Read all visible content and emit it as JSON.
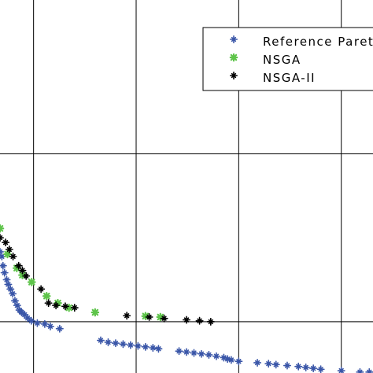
{
  "chart_data": {
    "type": "scatter",
    "xlim": [
      0,
      1.0
    ],
    "ylim": [
      0.32,
      1.12
    ],
    "x_gridlines": [
      0.09,
      0.365,
      0.64,
      0.915
    ],
    "y_gridlines": [
      0.43,
      0.79
    ],
    "grid": true,
    "legend_position": "top-right",
    "series": [
      {
        "name": "Reference Pareto",
        "color": "#3a56a8",
        "marker": "cross-star",
        "points": [
          [
            0.0,
            0.58
          ],
          [
            0.005,
            0.57
          ],
          [
            0.008,
            0.55
          ],
          [
            0.012,
            0.535
          ],
          [
            0.018,
            0.52
          ],
          [
            0.022,
            0.51
          ],
          [
            0.028,
            0.5
          ],
          [
            0.034,
            0.49
          ],
          [
            0.04,
            0.475
          ],
          [
            0.046,
            0.465
          ],
          [
            0.052,
            0.455
          ],
          [
            0.058,
            0.45
          ],
          [
            0.066,
            0.445
          ],
          [
            0.074,
            0.438
          ],
          [
            0.084,
            0.432
          ],
          [
            0.1,
            0.427
          ],
          [
            0.12,
            0.425
          ],
          [
            0.135,
            0.42
          ],
          [
            0.16,
            0.415
          ],
          [
            0.27,
            0.39
          ],
          [
            0.29,
            0.386
          ],
          [
            0.31,
            0.384
          ],
          [
            0.33,
            0.382
          ],
          [
            0.35,
            0.38
          ],
          [
            0.37,
            0.378
          ],
          [
            0.39,
            0.376
          ],
          [
            0.41,
            0.374
          ],
          [
            0.425,
            0.372
          ],
          [
            0.48,
            0.367
          ],
          [
            0.5,
            0.365
          ],
          [
            0.52,
            0.363
          ],
          [
            0.54,
            0.361
          ],
          [
            0.56,
            0.359
          ],
          [
            0.58,
            0.356
          ],
          [
            0.6,
            0.353
          ],
          [
            0.61,
            0.35
          ],
          [
            0.62,
            0.348
          ],
          [
            0.64,
            0.345
          ],
          [
            0.69,
            0.342
          ],
          [
            0.72,
            0.34
          ],
          [
            0.74,
            0.338
          ],
          [
            0.77,
            0.336
          ],
          [
            0.8,
            0.334
          ],
          [
            0.82,
            0.332
          ],
          [
            0.84,
            0.33
          ],
          [
            0.86,
            0.328
          ],
          [
            0.915,
            0.325
          ],
          [
            0.965,
            0.322
          ],
          [
            0.99,
            0.322
          ]
        ]
      },
      {
        "name": "NSGA",
        "color": "#5ec44a",
        "marker": "star",
        "points": [
          [
            0.0,
            0.63
          ],
          [
            0.02,
            0.575
          ],
          [
            0.045,
            0.545
          ],
          [
            0.06,
            0.53
          ],
          [
            0.085,
            0.515
          ],
          [
            0.125,
            0.485
          ],
          [
            0.155,
            0.47
          ],
          [
            0.185,
            0.46
          ],
          [
            0.255,
            0.45
          ],
          [
            0.39,
            0.442
          ],
          [
            0.43,
            0.44
          ]
        ]
      },
      {
        "name": "NSGA-II",
        "color": "#000000",
        "marker": "cross-star",
        "points": [
          [
            0.0,
            0.61
          ],
          [
            0.015,
            0.6
          ],
          [
            0.025,
            0.585
          ],
          [
            0.035,
            0.57
          ],
          [
            0.05,
            0.55
          ],
          [
            0.06,
            0.54
          ],
          [
            0.07,
            0.528
          ],
          [
            0.11,
            0.5
          ],
          [
            0.13,
            0.47
          ],
          [
            0.15,
            0.465
          ],
          [
            0.175,
            0.463
          ],
          [
            0.2,
            0.46
          ],
          [
            0.34,
            0.443
          ],
          [
            0.4,
            0.44
          ],
          [
            0.44,
            0.437
          ],
          [
            0.5,
            0.434
          ],
          [
            0.535,
            0.432
          ],
          [
            0.565,
            0.43
          ]
        ]
      }
    ]
  }
}
